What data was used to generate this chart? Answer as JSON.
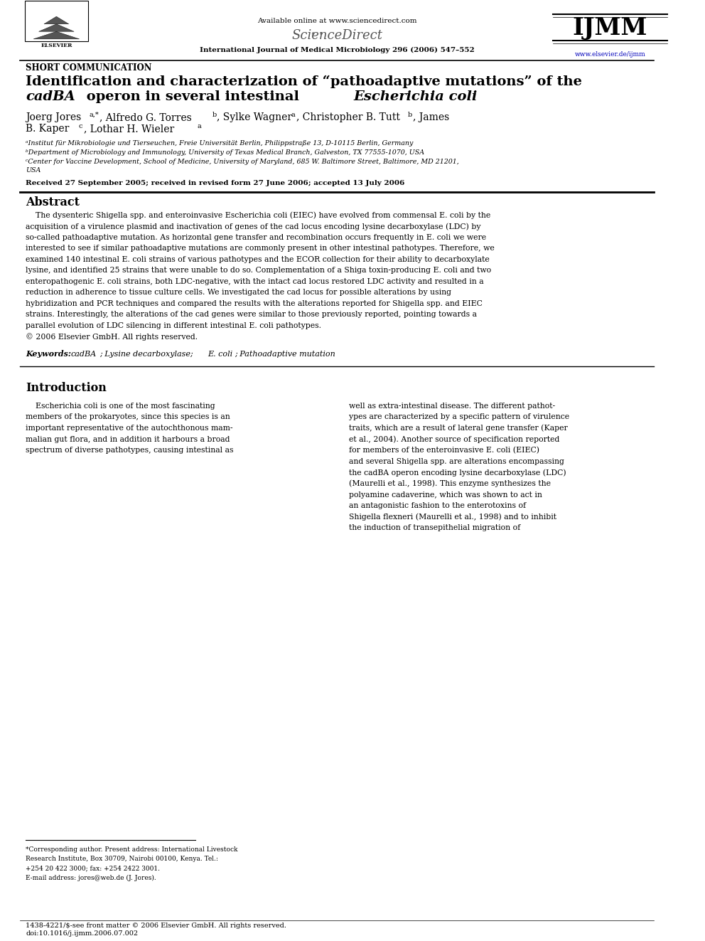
{
  "background_color": "#ffffff",
  "page_width": 9.92,
  "page_height": 13.23,
  "journal_name": "International Journal of Medical Microbiology 296 (2006) 547–552",
  "available_online": "Available online at www.sciencedirect.com",
  "website": "www.elsevier.de/ijmm",
  "article_type": "SHORT COMMUNICATION",
  "title_line1": "Identification and characterization of “pathoadaptive mutations” of the",
  "title_line2_cadBA": "cadBA",
  "title_line2_mid": " operon in several intestinal ",
  "title_line2_ecoli": "Escherichia coli",
  "affil_a": "ᵃInstitut für Mikrobiologie und Tierseuchen, Freie Universität Berlin, Philippstraße 13, D-10115 Berlin, Germany",
  "affil_b": "ᵇDepartment of Microbiology and Immunology, University of Texas Medical Branch, Galveston, TX 77555-1070, USA",
  "affil_c": "ᶜCenter for Vaccine Development, School of Medicine, University of Maryland, 685 W. Baltimore Street, Baltimore, MD 21201,",
  "affil_c2": "USA",
  "received": "Received 27 September 2005; received in revised form 27 June 2006; accepted 13 July 2006",
  "abstract_title": "Abstract",
  "keywords_label": "Keywords: ",
  "keywords_cadBA": "cadBA",
  "keywords_rest": "; Lysine decarboxylase; ",
  "keywords_ecoli": "E. coli",
  "keywords_end": "; Pathoadaptive mutation",
  "intro_title": "Introduction",
  "footer1": "1438-4221/$-see front matter © 2006 Elsevier GmbH. All rights reserved.",
  "footer2": "doi:10.1016/j.ijmm.2006.07.002"
}
